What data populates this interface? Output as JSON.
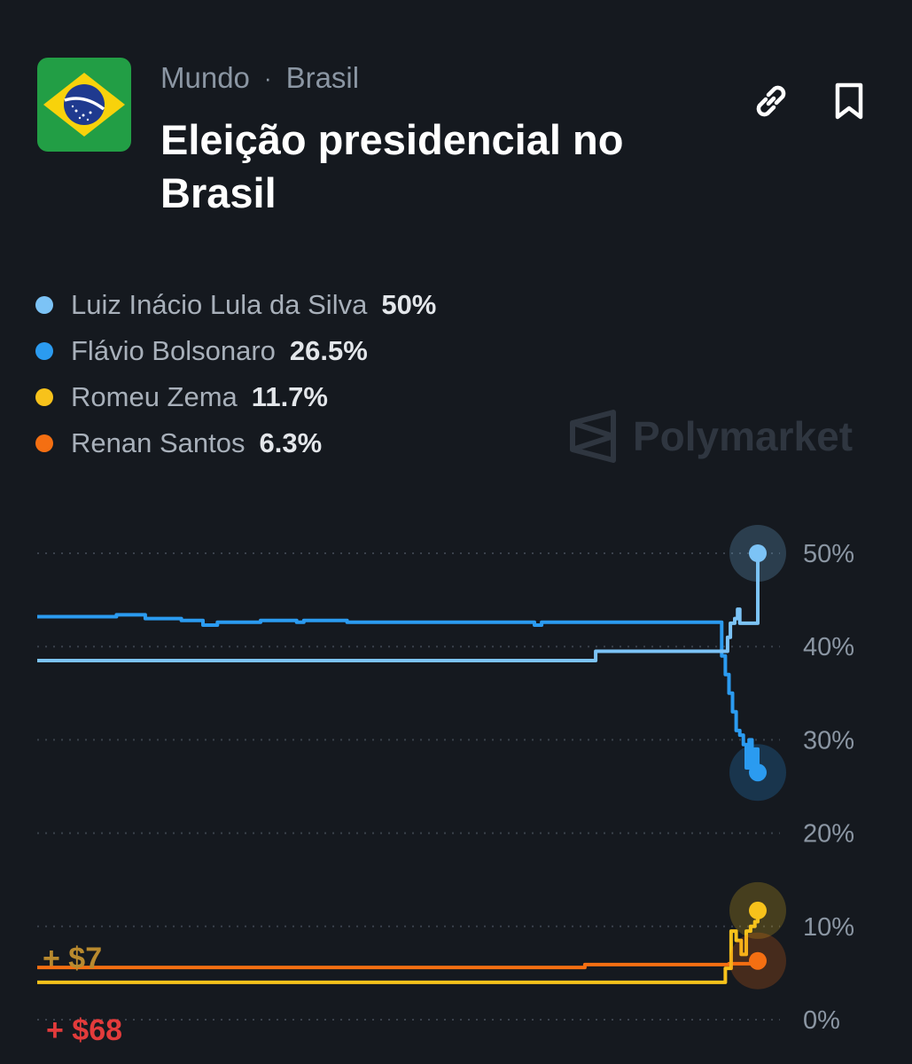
{
  "breadcrumb": {
    "category": "Mundo",
    "separator": "·",
    "subcategory": "Brasil"
  },
  "title": "Eleição presidencial no Brasil",
  "icons": {
    "flag": "brazil-flag-icon",
    "link": "link-icon",
    "bookmark": "bookmark-icon",
    "brand": "polymarket-logo-icon"
  },
  "watermark": "Polymarket",
  "colors": {
    "background": "#15191f",
    "lula": "#7cc3f6",
    "bolsonaro": "#2b9bf0",
    "zema": "#f7c21b",
    "santos": "#f46f12",
    "annotation_gold": "#b98a2e",
    "annotation_red": "#e23b3b"
  },
  "legend": [
    {
      "name": "Luiz Inácio Lula da Silva",
      "value": "50%",
      "color": "#7cc3f6"
    },
    {
      "name": "Flávio Bolsonaro",
      "value": "26.5%",
      "color": "#2b9bf0"
    },
    {
      "name": "Romeu Zema",
      "value": "11.7%",
      "color": "#f7c21b"
    },
    {
      "name": "Renan Santos",
      "value": "6.3%",
      "color": "#f46f12"
    }
  ],
  "annotations": [
    {
      "text": "+ $7",
      "color": "#b98a2e"
    },
    {
      "text": "+ $68",
      "color": "#e23b3b"
    }
  ],
  "chart_data": {
    "type": "line",
    "ylim": [
      0,
      50
    ],
    "yticks": [
      50,
      40,
      30,
      20,
      10,
      0
    ],
    "ytick_labels": [
      "50%",
      "40%",
      "30%",
      "20%",
      "10%",
      "0%"
    ],
    "grid": true,
    "legend_position": "top-left",
    "x_domain": [
      0,
      100
    ],
    "series": [
      {
        "name": "Luiz Inácio Lula da Silva",
        "color": "#7cc3f6",
        "points": [
          [
            0,
            38.5
          ],
          [
            77,
            38.5
          ],
          [
            77.5,
            39.5
          ],
          [
            95.5,
            39.5
          ],
          [
            95.8,
            41
          ],
          [
            96.2,
            42.5
          ],
          [
            96.8,
            43
          ],
          [
            97.2,
            44
          ],
          [
            97.5,
            42.5
          ],
          [
            100,
            42.5
          ],
          [
            100,
            50
          ]
        ]
      },
      {
        "name": "Flávio Bolsonaro",
        "color": "#2b9bf0",
        "points": [
          [
            0,
            43.2
          ],
          [
            10,
            43.2
          ],
          [
            11,
            43.4
          ],
          [
            14,
            43.4
          ],
          [
            15,
            43
          ],
          [
            19,
            43
          ],
          [
            20,
            42.8
          ],
          [
            22,
            42.8
          ],
          [
            23,
            42.3
          ],
          [
            25,
            42.6
          ],
          [
            30,
            42.6
          ],
          [
            31,
            42.8
          ],
          [
            35,
            42.8
          ],
          [
            36,
            42.6
          ],
          [
            37,
            42.8
          ],
          [
            42,
            42.8
          ],
          [
            43,
            42.6
          ],
          [
            68,
            42.6
          ],
          [
            69,
            42.3
          ],
          [
            70,
            42.6
          ],
          [
            94.5,
            42.6
          ],
          [
            95,
            39
          ],
          [
            95.5,
            37
          ],
          [
            96,
            35
          ],
          [
            96.5,
            33
          ],
          [
            97,
            31
          ],
          [
            97.5,
            30.5
          ],
          [
            98,
            29.5
          ],
          [
            98.4,
            27
          ],
          [
            98.8,
            30
          ],
          [
            99.2,
            27
          ],
          [
            99.6,
            29
          ],
          [
            100,
            26.5
          ]
        ]
      },
      {
        "name": "Romeu Zema",
        "color": "#f7c21b",
        "points": [
          [
            0,
            4
          ],
          [
            94.8,
            4
          ],
          [
            95.5,
            5.5
          ],
          [
            96.3,
            9.5
          ],
          [
            97,
            8.5
          ],
          [
            97.7,
            7
          ],
          [
            98.4,
            9.5
          ],
          [
            99,
            10
          ],
          [
            99.6,
            10.5
          ],
          [
            100,
            11.7
          ]
        ]
      },
      {
        "name": "Renan Santos",
        "color": "#f46f12",
        "points": [
          [
            0,
            5.6
          ],
          [
            75.5,
            5.6
          ],
          [
            76,
            5.9
          ],
          [
            95,
            5.9
          ],
          [
            96,
            6
          ],
          [
            100,
            6.3
          ]
        ]
      }
    ]
  }
}
